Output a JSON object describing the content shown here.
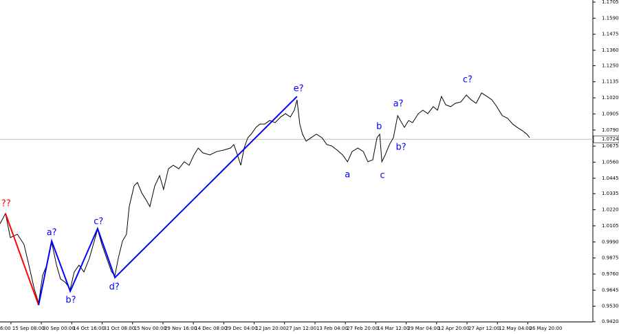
{
  "chart_data": {
    "type": "line",
    "xlim": [
      -0.36,
      19.14
    ],
    "ylim": [
      0.942,
      1.1705
    ],
    "xticks": [
      {
        "value": -1,
        "label": "6:00"
      },
      {
        "value": 0,
        "label": "15 Sep 08:00"
      },
      {
        "value": 1,
        "label": "30 Sep 00:00"
      },
      {
        "value": 2,
        "label": "14 Oct 16:00"
      },
      {
        "value": 3,
        "label": "31 Oct 08:00"
      },
      {
        "value": 4,
        "label": "15 Nov 00:00"
      },
      {
        "value": 5,
        "label": "29 Nov 16:00"
      },
      {
        "value": 6,
        "label": "14 Dec 08:00"
      },
      {
        "value": 7,
        "label": "29 Dec 04:00"
      },
      {
        "value": 8,
        "label": "12 Jan 20:00"
      },
      {
        "value": 9,
        "label": "27 Jan 12:00"
      },
      {
        "value": 10,
        "label": "13 Feb 04:00"
      },
      {
        "value": 11,
        "label": "27 Feb 20:00"
      },
      {
        "value": 12,
        "label": "14 Mar 12:00"
      },
      {
        "value": 13,
        "label": "29 Mar 04:00"
      },
      {
        "value": 14,
        "label": "12 Apr 20:00"
      },
      {
        "value": 15,
        "label": "27 Apr 12:00"
      },
      {
        "value": 16,
        "label": "12 May 04:00"
      },
      {
        "value": 17,
        "label": "26 May 20:00"
      }
    ],
    "yticks": [
      {
        "value": 0.942,
        "label": "0.9420"
      },
      {
        "value": 0.953,
        "label": "0.9530"
      },
      {
        "value": 0.9645,
        "label": "0.9645"
      },
      {
        "value": 0.976,
        "label": "0.9760"
      },
      {
        "value": 0.9875,
        "label": "0.9875"
      },
      {
        "value": 0.999,
        "label": "0.9990"
      },
      {
        "value": 1.0105,
        "label": "1.0105"
      },
      {
        "value": 1.022,
        "label": "1.0220"
      },
      {
        "value": 1.0335,
        "label": "1.0335"
      },
      {
        "value": 1.0445,
        "label": "1.0445"
      },
      {
        "value": 1.056,
        "label": "1.0560"
      },
      {
        "value": 1.0675,
        "label": "1.0675"
      },
      {
        "value": 1.079,
        "label": "1.0790"
      },
      {
        "value": 1.0905,
        "label": "1.0905"
      },
      {
        "value": 1.102,
        "label": "1.1020"
      },
      {
        "value": 1.1135,
        "label": "1.1135"
      },
      {
        "value": 1.125,
        "label": "1.1250"
      },
      {
        "value": 1.136,
        "label": "1.1360"
      },
      {
        "value": 1.1475,
        "label": "1.1475"
      },
      {
        "value": 1.159,
        "label": "1.1590"
      },
      {
        "value": 1.1705,
        "label": "1.1705"
      }
    ],
    "current_price": {
      "value": 1.0724,
      "label": "1.0724"
    },
    "current_price_color": "#c0c0c0",
    "series": [
      {
        "color": "#000000",
        "x": [
          -0.36,
          -0.18,
          -0.02,
          0.21,
          0.43,
          0.59,
          0.77,
          0.91,
          1.04,
          1.18,
          1.34,
          1.5,
          1.63,
          1.79,
          1.95,
          2.08,
          2.24,
          2.4,
          2.58,
          2.74,
          2.85,
          2.99,
          3.15,
          3.31,
          3.42,
          3.53,
          3.67,
          3.8,
          3.89,
          4.05,
          4.16,
          4.3,
          4.44,
          4.57,
          4.73,
          4.89,
          5.02,
          5.18,
          5.34,
          5.52,
          5.7,
          5.86,
          6.02,
          6.16,
          6.31,
          6.54,
          6.77,
          6.99,
          7.22,
          7.33,
          7.45,
          7.56,
          7.67,
          7.79,
          7.9,
          8.06,
          8.19,
          8.35,
          8.51,
          8.69,
          8.87,
          9.03,
          9.19,
          9.32,
          9.41,
          9.5,
          9.59,
          9.71,
          9.87,
          10.05,
          10.23,
          10.39,
          10.55,
          10.73,
          10.91,
          11.07,
          11.22,
          11.41,
          11.59,
          11.74,
          11.9,
          12.04,
          12.13,
          12.2,
          12.31,
          12.45,
          12.58,
          12.72,
          12.81,
          12.94,
          13.08,
          13.21,
          13.4,
          13.55,
          13.71,
          13.89,
          14.03,
          14.16,
          14.3,
          14.46,
          14.62,
          14.8,
          14.98,
          15.14,
          15.3,
          15.48,
          15.66,
          15.82,
          15.98,
          16.16,
          16.34,
          16.5,
          16.65,
          16.83,
          16.97,
          17.06
        ],
        "values": [
          1.0119,
          1.0193,
          1.0021,
          1.0045,
          0.9972,
          0.9824,
          0.9651,
          0.9553,
          0.975,
          0.9824,
          0.9986,
          0.9824,
          0.9725,
          0.9701,
          0.9651,
          0.9775,
          0.9824,
          0.9775,
          0.9873,
          0.9996,
          1.008,
          0.9972,
          0.9873,
          0.9775,
          0.975,
          0.9873,
          0.9996,
          1.0045,
          1.0242,
          1.039,
          1.0415,
          1.0341,
          1.0292,
          1.0242,
          1.039,
          1.0464,
          1.0366,
          1.0513,
          1.0538,
          1.0513,
          1.0563,
          1.0538,
          1.0612,
          1.0661,
          1.0627,
          1.0612,
          1.0636,
          1.0646,
          1.0661,
          1.0686,
          1.0612,
          1.0538,
          1.0661,
          1.0735,
          1.076,
          1.0809,
          1.0833,
          1.0833,
          1.0858,
          1.0843,
          1.0883,
          1.0907,
          1.0883,
          1.0932,
          1.1006,
          1.0833,
          1.076,
          1.071,
          1.0735,
          1.076,
          1.0735,
          1.0686,
          1.0676,
          1.0646,
          1.0612,
          1.0563,
          1.0636,
          1.0661,
          1.0636,
          1.0563,
          1.0577,
          1.0735,
          1.076,
          1.0563,
          1.0612,
          1.0686,
          1.0735,
          1.0893,
          1.0858,
          1.0809,
          1.0858,
          1.0843,
          1.0907,
          1.0932,
          1.0907,
          1.0957,
          1.0932,
          1.103,
          1.0971,
          1.0957,
          1.0981,
          1.0991,
          1.104,
          1.1006,
          1.0981,
          1.1055,
          1.103,
          1.1006,
          1.0957,
          1.0893,
          1.0873,
          1.0833,
          1.0809,
          1.0784,
          1.076,
          1.0735
        ]
      },
      {
        "color": "#ff0000",
        "x": [
          -0.18,
          0.91
        ],
        "values": [
          1.0193,
          0.9538
        ]
      },
      {
        "color": "#0000ff",
        "x": [
          0.91,
          1.34,
          1.95,
          2.85,
          3.42,
          9.41
        ],
        "values": [
          0.9538,
          0.9996,
          0.9637,
          1.0085,
          0.9735,
          1.103
        ]
      }
    ],
    "annotations": [
      {
        "text": "??",
        "x": -0.16,
        "y": 1.0262,
        "color": "#ff0000"
      },
      {
        "text": "a?",
        "x": 1.34,
        "y": 1.0055,
        "color": "#0000ff"
      },
      {
        "text": "b?",
        "x": 1.97,
        "y": 0.9573,
        "color": "#0000ff"
      },
      {
        "text": "c?",
        "x": 2.88,
        "y": 1.0134,
        "color": "#0000ff"
      },
      {
        "text": "d?",
        "x": 3.4,
        "y": 0.9666,
        "color": "#0000ff"
      },
      {
        "text": "e?",
        "x": 9.46,
        "y": 1.1085,
        "color": "#0000ff"
      },
      {
        "text": "a",
        "x": 11.07,
        "y": 1.0469,
        "color": "#0000ff"
      },
      {
        "text": "b",
        "x": 12.11,
        "y": 1.0814,
        "color": "#0000ff"
      },
      {
        "text": "c",
        "x": 12.22,
        "y": 1.0464,
        "color": "#0000ff"
      },
      {
        "text": "a?",
        "x": 12.74,
        "y": 1.0976,
        "color": "#0000ff"
      },
      {
        "text": "b?",
        "x": 12.83,
        "y": 1.0666,
        "color": "#0000ff"
      },
      {
        "text": "c?",
        "x": 15.02,
        "y": 1.1149,
        "color": "#0000ff"
      }
    ]
  }
}
